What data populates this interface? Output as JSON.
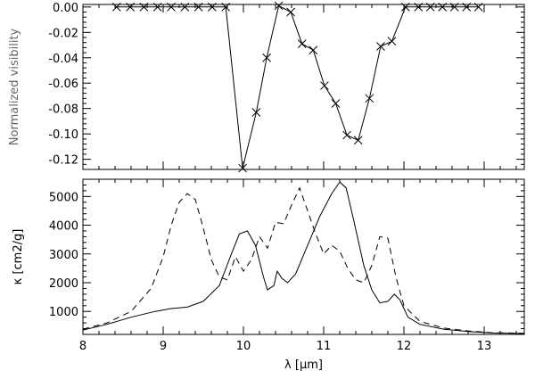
{
  "chart_data": [
    {
      "type": "line",
      "title": "",
      "ylabel": "Normalized visibility",
      "xlabel": "",
      "xlim": [
        8.0,
        13.5
      ],
      "ylim": [
        -0.128,
        0.002
      ],
      "xticks": [
        8,
        9,
        10,
        11,
        12,
        13
      ],
      "yticks": [
        0.0,
        -0.02,
        -0.04,
        -0.06,
        -0.08,
        -0.1,
        -0.12
      ],
      "ytick_labels": [
        "0.00",
        "-0.02",
        "-0.04",
        "-0.06",
        "-0.08",
        "-0.10",
        "-0.12"
      ],
      "show_xtick_labels": false,
      "grid": false,
      "series": [
        {
          "style": "solid",
          "marker": "x",
          "color": "#000000",
          "x": [
            8.42,
            8.59,
            8.76,
            8.93,
            9.1,
            9.27,
            9.44,
            9.61,
            9.78,
            9.99,
            10.16,
            10.29,
            10.44,
            10.59,
            10.73,
            10.87,
            11.01,
            11.15,
            11.29,
            11.43,
            11.57,
            11.71,
            11.85,
            12.02,
            12.18,
            12.33,
            12.48,
            12.63,
            12.78,
            12.93
          ],
          "y": [
            0.0,
            0.0,
            0.0,
            0.0,
            0.0,
            0.0,
            0.0,
            0.0,
            0.0,
            -0.127,
            -0.083,
            -0.04,
            0.001,
            -0.004,
            -0.029,
            -0.034,
            -0.062,
            -0.076,
            -0.101,
            -0.105,
            -0.072,
            -0.031,
            -0.027,
            0.0,
            0.0,
            0.0,
            0.0,
            0.0,
            0.0,
            0.0
          ]
        }
      ]
    },
    {
      "type": "line",
      "title": "",
      "ylabel": "κ [cm2/g]",
      "xlabel": "λ [μm]",
      "xlim": [
        8.0,
        13.5
      ],
      "ylim": [
        200,
        5600
      ],
      "xticks": [
        8,
        9,
        10,
        11,
        12,
        13
      ],
      "xtick_labels": [
        "8",
        "9",
        "10",
        "11",
        "12",
        "13"
      ],
      "yticks": [
        1000,
        2000,
        3000,
        4000,
        5000
      ],
      "ytick_labels": [
        "1000",
        "2000",
        "3000",
        "4000",
        "5000"
      ],
      "grid": false,
      "series": [
        {
          "style": "solid",
          "color": "#000000",
          "x": [
            8.0,
            8.3,
            8.6,
            8.9,
            9.1,
            9.3,
            9.5,
            9.7,
            9.85,
            9.95,
            10.05,
            10.15,
            10.25,
            10.3,
            10.38,
            10.42,
            10.48,
            10.55,
            10.65,
            10.8,
            10.95,
            11.1,
            11.2,
            11.28,
            11.38,
            11.5,
            11.6,
            11.7,
            11.8,
            11.88,
            11.95,
            12.05,
            12.2,
            12.5,
            12.8,
            13.1,
            13.5
          ],
          "y": [
            350,
            550,
            800,
            1000,
            1100,
            1150,
            1350,
            1900,
            3000,
            3700,
            3800,
            3300,
            2200,
            1750,
            1900,
            2400,
            2150,
            2000,
            2300,
            3300,
            4300,
            5100,
            5500,
            5300,
            4100,
            2600,
            1750,
            1300,
            1350,
            1600,
            1400,
            800,
            550,
            380,
            300,
            250,
            230
          ]
        },
        {
          "style": "dashed",
          "color": "#000000",
          "x": [
            8.0,
            8.3,
            8.6,
            8.85,
            9.0,
            9.1,
            9.2,
            9.3,
            9.4,
            9.5,
            9.6,
            9.7,
            9.8,
            9.9,
            10.0,
            10.1,
            10.2,
            10.3,
            10.4,
            10.5,
            10.6,
            10.7,
            10.8,
            10.9,
            11.0,
            11.1,
            11.2,
            11.3,
            11.4,
            11.5,
            11.6,
            11.7,
            11.8,
            11.9,
            12.0,
            12.2,
            12.5,
            12.8,
            13.1,
            13.5
          ],
          "y": [
            380,
            600,
            1000,
            1800,
            2900,
            4000,
            4800,
            5100,
            4900,
            3900,
            2800,
            2200,
            2100,
            2900,
            2400,
            2800,
            3600,
            3200,
            4100,
            4050,
            4700,
            5300,
            4500,
            3700,
            3000,
            3300,
            3100,
            2500,
            2100,
            2000,
            2600,
            3600,
            3550,
            2200,
            1200,
            650,
            420,
            320,
            260,
            240
          ]
        }
      ]
    }
  ]
}
